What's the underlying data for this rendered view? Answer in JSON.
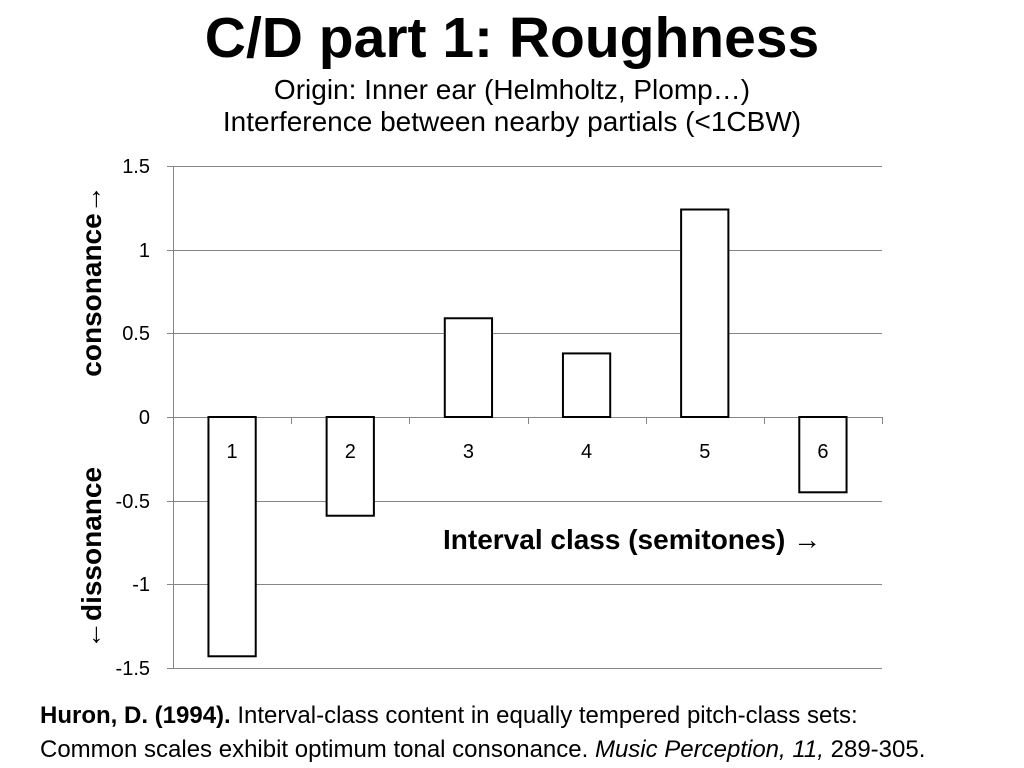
{
  "slide": {
    "title": "C/D part 1: Roughness",
    "subtitle_line1": "Origin: Inner ear (Helmholtz, Plomp…)",
    "subtitle_line2": "Interference between nearby partials (<1CBW)"
  },
  "citation": {
    "author_year": "Huron, D. (1994).",
    "title_line1": "Interval-class content in equally tempered pitch-class sets:",
    "title_line2": "Common scales exhibit optimum tonal consonance.",
    "journal_volume": "Music Perception, 11,",
    "pages": "289-305."
  },
  "chart_data": {
    "type": "bar",
    "categories": [
      "1",
      "2",
      "3",
      "4",
      "5",
      "6"
    ],
    "values": [
      -1.43,
      -0.59,
      0.59,
      0.38,
      1.24,
      -0.45
    ],
    "xlabel": "Interval class (semitones) →",
    "ylabel_positive": "consonance→",
    "ylabel_negative": "←dissonance",
    "ylim": [
      -1.5,
      1.5
    ],
    "yticks": [
      1.5,
      1,
      0.5,
      0,
      -0.5,
      -1,
      -1.5
    ],
    "grid": true,
    "colors": {
      "bar_fill": "#ffffff",
      "bar_stroke": "#000000",
      "gridline": "#868686",
      "text": "#000000"
    }
  }
}
